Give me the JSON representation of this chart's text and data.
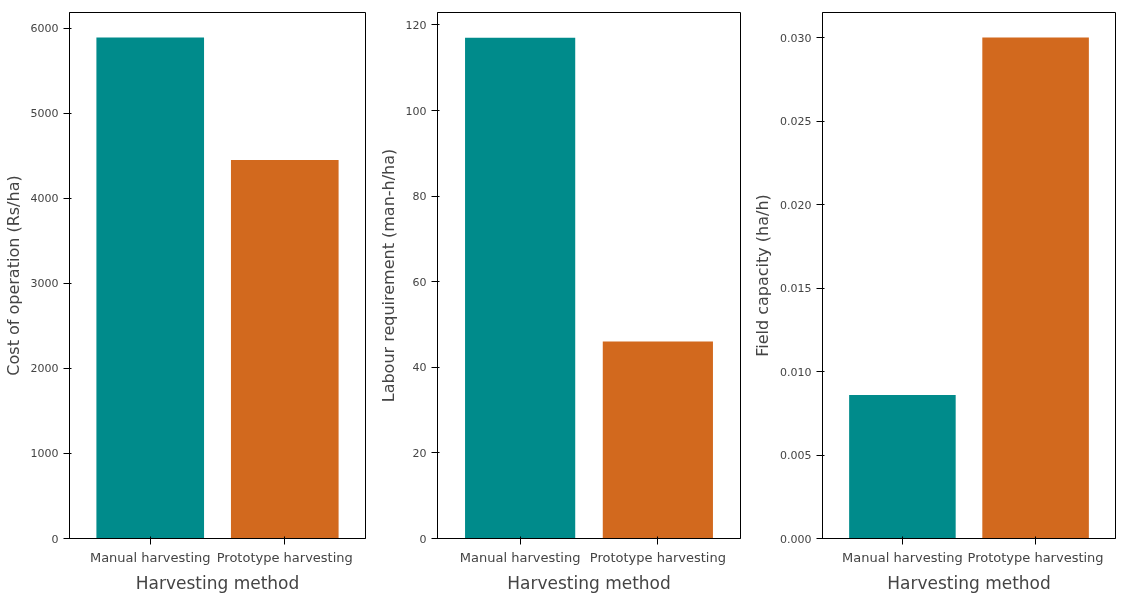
{
  "chart_data": [
    {
      "type": "bar",
      "categories": [
        "Manual harvesting",
        "Prototype harvesting"
      ],
      "values": [
        5890,
        4450
      ],
      "colors": [
        "#008b8b",
        "#d2691e"
      ],
      "xlabel": "Harvesting method",
      "ylabel": "Cost of operation (Rs/ha)",
      "ylim": [
        0,
        6185
      ],
      "yticks": [
        0,
        1000,
        2000,
        3000,
        4000,
        5000,
        6000
      ]
    },
    {
      "type": "bar",
      "categories": [
        "Manual harvesting",
        "Prototype harvesting"
      ],
      "values": [
        117,
        46
      ],
      "colors": [
        "#008b8b",
        "#d2691e"
      ],
      "xlabel": "Harvesting method",
      "ylabel": "Labour requirement (man-h/ha)",
      "ylim": [
        0,
        122.9
      ],
      "yticks": [
        0,
        20,
        40,
        60,
        80,
        100,
        120
      ]
    },
    {
      "type": "bar",
      "categories": [
        "Manual harvesting",
        "Prototype harvesting"
      ],
      "values": [
        0.0086,
        0.03
      ],
      "colors": [
        "#008b8b",
        "#d2691e"
      ],
      "xlabel": "Harvesting method",
      "ylabel": "Field capacity (ha/h)",
      "ylim": [
        0,
        0.0315
      ],
      "yticks": [
        {
          "value": 0,
          "label": "0.000"
        },
        {
          "value": 0.005,
          "label": "0.005"
        },
        {
          "value": 0.01,
          "label": "0.010"
        },
        {
          "value": 0.015,
          "label": "0.015"
        },
        {
          "value": 0.02,
          "label": "0.020"
        },
        {
          "value": 0.025,
          "label": "0.025"
        },
        {
          "value": 0.03,
          "label": "0.030"
        }
      ]
    }
  ]
}
